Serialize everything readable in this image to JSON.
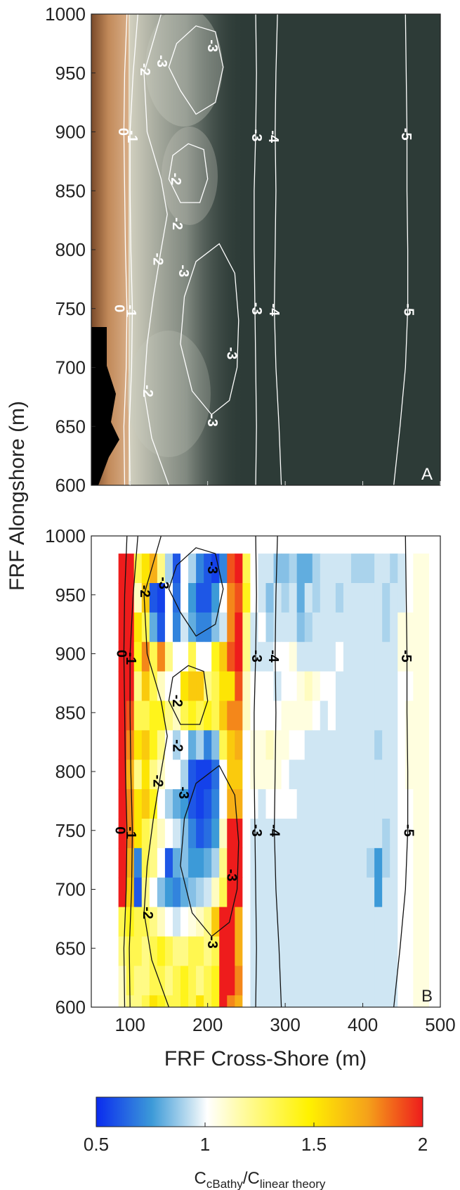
{
  "figure": {
    "ylabel": "FRF Alongshore (m)",
    "xlabel": "FRF Cross-Shore (m)",
    "colorbar": {
      "label_main": "C",
      "label_sub1": "cBathy",
      "label_mid": "/C",
      "label_sub2": "linear theory",
      "ticks": [
        "0.5",
        "1",
        "1.5",
        "2"
      ],
      "range": [
        0.5,
        2
      ],
      "colors": [
        "#0a2bef",
        "#3c9ad8",
        "#cfe6f3",
        "#ffffff",
        "#fffba0",
        "#fff200",
        "#f5a21a",
        "#ee1c1c"
      ]
    }
  },
  "chart_data": [
    {
      "type": "contour",
      "panel": "A",
      "description_note": "",
      "xlim": [
        50,
        500
      ],
      "ylim": [
        600,
        1000
      ],
      "x_ticks": [
        "100",
        "200",
        "300",
        "400",
        "500"
      ],
      "y_ticks": [
        "600",
        "650",
        "700",
        "750",
        "800",
        "850",
        "900",
        "950",
        "1000"
      ],
      "y_tick_values": [
        600,
        650,
        700,
        750,
        800,
        850,
        900,
        950,
        1000
      ],
      "x_tick_values": [
        100,
        200,
        300,
        400,
        500
      ],
      "contour_levels": [
        "0",
        "-1",
        "-2",
        "-3",
        "-4",
        "-5"
      ],
      "contour_labels": [
        {
          "text": "0",
          "x": 90,
          "y": 900
        },
        {
          "text": "-1",
          "x": 102,
          "y": 896
        },
        {
          "text": "-2",
          "x": 118,
          "y": 953
        },
        {
          "text": "-3",
          "x": 140,
          "y": 960
        },
        {
          "text": "-3",
          "x": 205,
          "y": 973
        },
        {
          "text": "-2",
          "x": 158,
          "y": 860
        },
        {
          "text": "-2",
          "x": 160,
          "y": 822
        },
        {
          "text": "-2",
          "x": 135,
          "y": 792
        },
        {
          "text": "-3",
          "x": 168,
          "y": 782
        },
        {
          "text": "0",
          "x": 85,
          "y": 750
        },
        {
          "text": "-1",
          "x": 100,
          "y": 748
        },
        {
          "text": "-3",
          "x": 230,
          "y": 712
        },
        {
          "text": "-2",
          "x": 122,
          "y": 680
        },
        {
          "text": "-3",
          "x": 205,
          "y": 655
        },
        {
          "text": "-3",
          "x": 262,
          "y": 897
        },
        {
          "text": "-4",
          "x": 284,
          "y": 896
        },
        {
          "text": "-3",
          "x": 262,
          "y": 750
        },
        {
          "text": "-4",
          "x": 285,
          "y": 749
        },
        {
          "text": "-5",
          "x": 455,
          "y": 898
        },
        {
          "text": "-5",
          "x": 458,
          "y": 749
        }
      ],
      "panel_label": "A"
    },
    {
      "type": "heatmap",
      "panel": "B",
      "xlim": [
        50,
        500
      ],
      "ylim": [
        600,
        1000
      ],
      "x_ticks": [
        "100",
        "200",
        "300",
        "400",
        "500"
      ],
      "y_ticks": [
        "600",
        "650",
        "700",
        "750",
        "800",
        "850",
        "900",
        "950",
        "1000"
      ],
      "x_tick_values": [
        100,
        200,
        300,
        400,
        500
      ],
      "y_tick_values": [
        600,
        650,
        700,
        750,
        800,
        850,
        900,
        950,
        1000
      ],
      "color_range": [
        0.5,
        2
      ],
      "cell_x_start": 85,
      "cell_x_step": 10,
      "cell_y_top": 985,
      "cell_y_step": 25,
      "rows": [
        [
          2.0,
          2.0,
          1.3,
          1.5,
          1.7,
          1.2,
          0.9,
          0.6,
          1.0,
          0.9,
          0.7,
          0.6,
          0.55,
          0.7,
          1.9,
          2.0,
          1.3,
          1.0,
          0.95,
          0.95,
          0.85,
          0.85,
          0.9,
          0.8,
          0.8,
          0.9,
          0.95,
          0.95,
          0.95,
          0.95,
          0.9,
          0.9,
          0.9,
          0.95,
          0.95,
          0.9,
          0.95,
          1.0,
          1.05,
          1.05
        ],
        [
          2.0,
          2.0,
          1.1,
          1.6,
          0.6,
          0.55,
          1.0,
          0.65,
          1.0,
          0.75,
          0.6,
          0.6,
          0.75,
          1.0,
          1.8,
          1.9,
          1.4,
          1.0,
          0.95,
          0.85,
          0.95,
          0.9,
          0.95,
          0.8,
          0.95,
          0.9,
          0.95,
          0.95,
          0.9,
          0.95,
          0.95,
          0.95,
          0.95,
          0.95,
          0.9,
          0.95,
          0.95,
          1.0,
          1.05,
          1.05
        ],
        [
          2.0,
          2.0,
          1.5,
          1.3,
          0.8,
          0.6,
          1.0,
          0.7,
          0.95,
          0.8,
          0.7,
          0.7,
          0.85,
          0.95,
          1.8,
          2.0,
          1.2,
          0.95,
          1.0,
          0.9,
          0.95,
          0.95,
          0.95,
          0.85,
          0.9,
          0.95,
          0.95,
          0.95,
          0.95,
          0.95,
          0.95,
          0.95,
          0.95,
          0.95,
          0.9,
          0.95,
          1.05,
          1.05,
          1.05,
          1.05
        ],
        [
          2.0,
          2.0,
          1.4,
          1.8,
          1.3,
          1.8,
          1.2,
          1.0,
          1.0,
          1.3,
          1.0,
          1.0,
          1.4,
          1.6,
          1.9,
          2.0,
          1.2,
          0.95,
          0.95,
          0.95,
          1.0,
          1.0,
          1.05,
          0.95,
          0.95,
          0.95,
          0.95,
          0.95,
          1.0,
          0.95,
          0.95,
          0.95,
          0.95,
          0.95,
          0.95,
          0.95,
          1.05,
          1.05,
          1.05,
          1.05
        ],
        [
          2.0,
          2.0,
          1.2,
          1.6,
          1.3,
          1.1,
          1.0,
          1.0,
          1.5,
          1.6,
          1.6,
          1.2,
          1.3,
          1.5,
          1.5,
          1.9,
          1.1,
          1.0,
          1.0,
          1.0,
          0.95,
          1.0,
          1.0,
          1.05,
          1.1,
          1.05,
          1.0,
          1.0,
          0.95,
          0.95,
          0.95,
          0.95,
          0.95,
          0.95,
          0.95,
          0.95,
          1.0,
          1.0,
          1.05,
          1.05
        ],
        [
          2.0,
          1.9,
          1.3,
          1.3,
          1.4,
          1.4,
          1.2,
          1.1,
          1.3,
          1.4,
          1.3,
          1.4,
          1.3,
          1.6,
          1.8,
          1.8,
          1.1,
          1.0,
          1.0,
          1.0,
          1.0,
          1.05,
          1.05,
          1.05,
          1.05,
          1.0,
          0.95,
          1.0,
          0.95,
          0.95,
          0.95,
          0.95,
          0.95,
          0.95,
          0.95,
          0.95,
          1.0,
          1.05,
          1.05,
          1.05
        ],
        [
          2.0,
          1.8,
          1.5,
          1.6,
          1.4,
          1.2,
          1.0,
          0.9,
          1.0,
          0.8,
          0.9,
          0.7,
          0.85,
          1.3,
          1.6,
          1.7,
          1.0,
          1.05,
          1.05,
          1.1,
          1.05,
          1.05,
          1.0,
          1.0,
          0.95,
          0.95,
          0.95,
          0.95,
          0.95,
          0.95,
          0.95,
          0.95,
          0.95,
          0.9,
          0.95,
          0.95,
          1.0,
          1.05,
          1.05,
          1.05
        ],
        [
          2.0,
          1.7,
          1.2,
          1.5,
          1.2,
          1.1,
          1.0,
          1.0,
          0.9,
          0.6,
          0.55,
          0.55,
          0.65,
          1.0,
          1.6,
          1.6,
          1.0,
          1.05,
          1.05,
          1.05,
          1.05,
          1.0,
          0.95,
          0.95,
          0.95,
          0.95,
          0.95,
          0.95,
          0.95,
          0.95,
          0.95,
          0.95,
          0.95,
          0.95,
          0.95,
          0.95,
          1.0,
          1.05,
          1.05,
          1.05
        ],
        [
          2.0,
          1.8,
          1.5,
          1.6,
          1.4,
          1.0,
          0.9,
          0.8,
          0.75,
          0.6,
          0.55,
          0.6,
          0.7,
          1.0,
          1.7,
          1.7,
          1.0,
          1.0,
          0.95,
          1.0,
          1.0,
          1.0,
          1.0,
          0.95,
          0.95,
          0.95,
          0.95,
          0.95,
          0.95,
          0.95,
          0.95,
          0.95,
          0.95,
          0.95,
          0.95,
          0.95,
          1.0,
          1.0,
          1.05,
          1.05
        ],
        [
          2.0,
          1.8,
          1.5,
          1.3,
          1.2,
          1.1,
          1.0,
          0.95,
          0.85,
          0.7,
          0.6,
          0.65,
          0.75,
          1.1,
          2.0,
          2.0,
          1.0,
          0.95,
          0.95,
          0.95,
          0.95,
          0.95,
          0.95,
          0.95,
          0.95,
          0.95,
          0.95,
          0.95,
          0.95,
          0.95,
          0.95,
          0.95,
          0.95,
          0.95,
          0.9,
          0.95,
          1.0,
          1.0,
          1.05,
          1.05
        ],
        [
          2.0,
          1.7,
          0.7,
          1.3,
          1.2,
          1.0,
          0.6,
          0.8,
          0.85,
          0.75,
          0.75,
          0.8,
          0.9,
          1.2,
          2.0,
          2.0,
          1.0,
          0.95,
          0.95,
          0.95,
          0.95,
          0.95,
          0.95,
          0.95,
          0.95,
          0.95,
          0.95,
          0.95,
          0.95,
          0.95,
          0.95,
          0.95,
          0.9,
          0.75,
          0.9,
          0.95,
          1.0,
          1.0,
          1.05,
          1.05
        ],
        [
          2.0,
          1.6,
          0.6,
          1.2,
          1.0,
          0.85,
          0.75,
          0.7,
          0.8,
          0.85,
          0.9,
          0.95,
          1.1,
          1.3,
          2.0,
          2.0,
          1.0,
          0.95,
          0.95,
          0.95,
          0.95,
          0.95,
          0.95,
          0.95,
          0.95,
          0.95,
          0.95,
          0.95,
          0.95,
          0.95,
          0.95,
          0.95,
          0.95,
          0.75,
          0.95,
          0.95,
          1.0,
          1.0,
          1.05,
          1.05
        ],
        [
          1.3,
          1.4,
          1.3,
          1.3,
          1.2,
          1.1,
          1.0,
          0.95,
          1.0,
          1.05,
          1.1,
          1.2,
          1.6,
          2.0,
          2.0,
          1.7,
          1.0,
          0.95,
          0.95,
          0.95,
          0.95,
          0.95,
          0.95,
          0.95,
          0.95,
          0.95,
          0.95,
          0.95,
          0.95,
          0.95,
          0.95,
          0.95,
          0.95,
          0.95,
          0.95,
          0.95,
          1.0,
          1.0,
          1.05,
          1.05
        ],
        [
          1.2,
          1.3,
          1.3,
          1.2,
          1.3,
          1.4,
          1.3,
          1.2,
          1.2,
          1.3,
          1.3,
          1.2,
          1.3,
          2.0,
          2.0,
          1.7,
          1.0,
          0.95,
          0.95,
          0.95,
          0.95,
          0.95,
          0.95,
          0.95,
          0.95,
          0.95,
          0.95,
          0.95,
          0.95,
          0.95,
          0.95,
          0.95,
          0.95,
          0.95,
          0.95,
          0.95,
          1.0,
          1.0,
          1.05,
          1.05
        ],
        [
          1.1,
          1.3,
          1.2,
          1.2,
          1.3,
          1.3,
          1.2,
          1.3,
          1.4,
          1.3,
          1.2,
          1.3,
          1.4,
          2.0,
          2.0,
          1.8,
          1.0,
          0.95,
          0.95,
          0.95,
          0.95,
          0.95,
          0.95,
          0.95,
          0.95,
          0.95,
          0.95,
          0.95,
          0.95,
          0.95,
          0.95,
          0.95,
          0.95,
          0.95,
          0.95,
          0.95,
          1.0,
          1.0,
          1.05,
          1.05
        ],
        [
          1.1,
          1.2,
          1.2,
          1.3,
          1.5,
          1.4,
          1.3,
          1.3,
          1.4,
          1.3,
          1.5,
          1.3,
          1.4,
          2.0,
          1.8,
          1.7,
          1.0,
          0.95,
          0.95,
          0.95,
          0.95,
          0.95,
          0.95,
          0.95,
          0.95,
          0.95,
          0.95,
          0.95,
          0.95,
          0.95,
          0.95,
          0.95,
          0.95,
          0.95,
          0.95,
          0.95,
          1.0,
          1.0,
          1.05,
          1.05
        ]
      ],
      "contour_labels": [
        {
          "text": "0",
          "x": 88,
          "y": 900
        },
        {
          "text": "-1",
          "x": 100,
          "y": 896
        },
        {
          "text": "-2",
          "x": 118,
          "y": 953
        },
        {
          "text": "-3",
          "x": 142,
          "y": 960
        },
        {
          "text": "-3",
          "x": 205,
          "y": 973
        },
        {
          "text": "-2",
          "x": 160,
          "y": 860
        },
        {
          "text": "-2",
          "x": 160,
          "y": 822
        },
        {
          "text": "-2",
          "x": 135,
          "y": 792
        },
        {
          "text": "-3",
          "x": 168,
          "y": 782
        },
        {
          "text": "0",
          "x": 86,
          "y": 750
        },
        {
          "text": "-1",
          "x": 100,
          "y": 748
        },
        {
          "text": "-3",
          "x": 230,
          "y": 712
        },
        {
          "text": "-2",
          "x": 122,
          "y": 680
        },
        {
          "text": "-3",
          "x": 205,
          "y": 655
        },
        {
          "text": "-3",
          "x": 262,
          "y": 898
        },
        {
          "text": "-4",
          "x": 284,
          "y": 898
        },
        {
          "text": "-3",
          "x": 262,
          "y": 750
        },
        {
          "text": "-4",
          "x": 285,
          "y": 750
        },
        {
          "text": "-5",
          "x": 455,
          "y": 898
        },
        {
          "text": "-5",
          "x": 458,
          "y": 750
        }
      ],
      "panel_label": "B"
    }
  ]
}
